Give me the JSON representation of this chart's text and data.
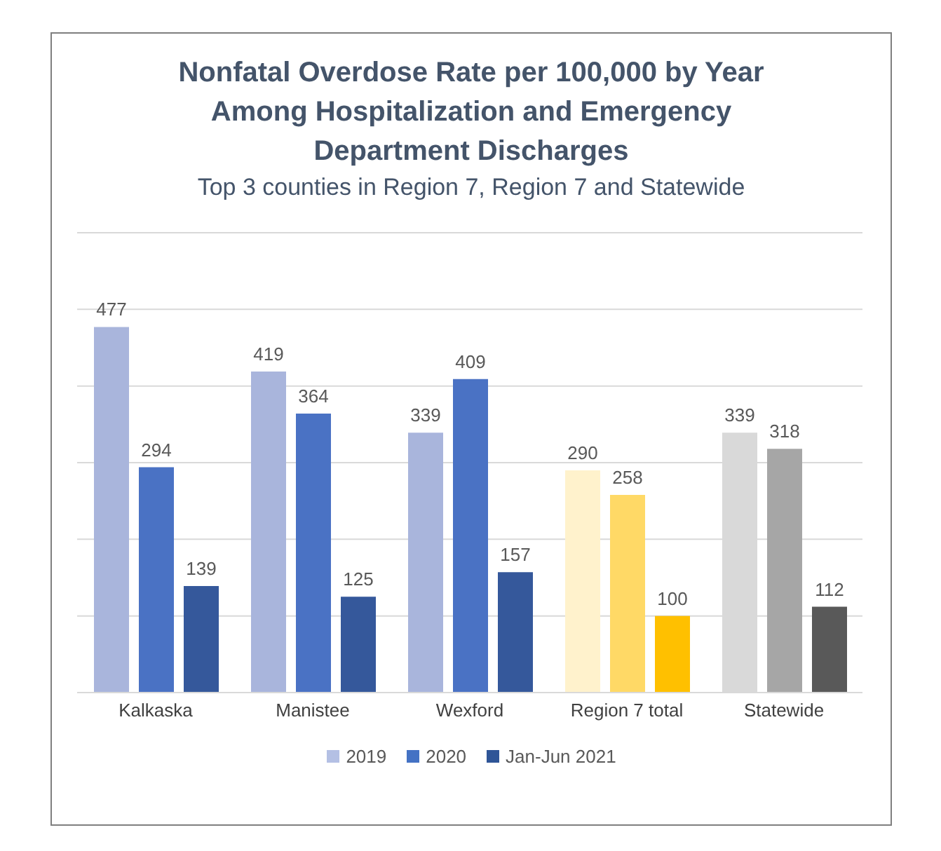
{
  "chart_data": {
    "type": "bar",
    "title": "Nonfatal Overdose Rate per 100,000 by Year Among Hospitalization and Emergency Department Discharges",
    "subtitle": "Top 3 counties in Region 7, Region 7 and Statewide",
    "categories": [
      "Kalkaska",
      "Manistee",
      "Wexford",
      "Region 7 total",
      "Statewide"
    ],
    "series": [
      {
        "name": "2019",
        "color": "#b4c0e4",
        "values": [
          477,
          419,
          339,
          290,
          339
        ],
        "colors": [
          "#a9b5dc",
          "#a9b5dc",
          "#a9b5dc",
          "#fff2cc",
          "#d9d9d9"
        ]
      },
      {
        "name": "2020",
        "color": "#4472c4",
        "values": [
          294,
          364,
          409,
          258,
          318
        ],
        "colors": [
          "#4a72c4",
          "#4a72c4",
          "#4a72c4",
          "#ffd966",
          "#a6a6a6"
        ]
      },
      {
        "name": "Jan-Jun 2021",
        "color": "#2f5597",
        "values": [
          139,
          125,
          157,
          100,
          112
        ],
        "colors": [
          "#35589b",
          "#35589b",
          "#35589b",
          "#ffc000",
          "#595959"
        ]
      }
    ],
    "ylim": [
      0,
      600
    ],
    "yticks": [
      0,
      100,
      200,
      300,
      400,
      500,
      600
    ],
    "tick_labels": "x",
    "grid": "y",
    "legend": "bottom",
    "data_labels": true
  }
}
